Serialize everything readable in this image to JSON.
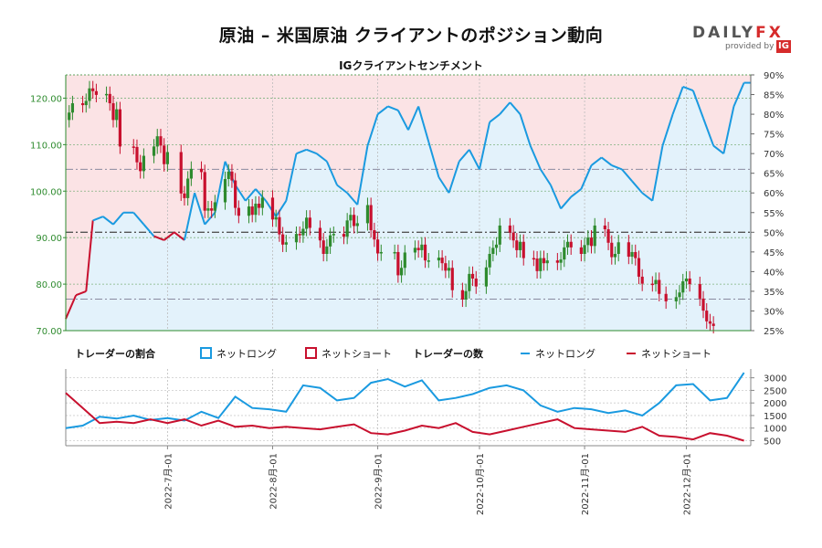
{
  "title": "原油 – 米国原油 クライアントのポジション動向",
  "brand": {
    "name_main": "DAILY",
    "name_accent": "FX",
    "tagline": "provided by",
    "sub_brand": "IG",
    "accent_color": "#d62b2b"
  },
  "chart_data": {
    "type": "line",
    "subtitle": "IGクライアントセンチメント",
    "colors": {
      "long": "#1a9ae0",
      "short": "#c8102e",
      "price_up": "#2e8b2e",
      "price_down": "#c8102e",
      "long_fill": "#e3f2fb",
      "short_fill": "#fbe3e5"
    },
    "x_axis": {
      "tick_labels": [
        "2022-7月-01",
        "2022-8月-01",
        "2022-9月-01",
        "2022-10月-01",
        "2022-11月-01",
        "2022-12月-01"
      ],
      "tick_dates": [
        "2022-07-01",
        "2022-08-01",
        "2022-09-01",
        "2022-10-01",
        "2022-11-01",
        "2022-12-01"
      ],
      "range": [
        "2022-06-01",
        "2022-12-20"
      ]
    },
    "price_axis": {
      "ylim": [
        70,
        125
      ],
      "ticks": [
        "70.00",
        "80.00",
        "90.00",
        "100.00",
        "110.00",
        "120.00"
      ]
    },
    "ratio_axis": {
      "ylim": [
        25,
        90
      ],
      "ticks": [
        "25%",
        "30%",
        "35%",
        "40%",
        "45%",
        "50%",
        "55%",
        "60%",
        "65%",
        "70%",
        "75%",
        "80%",
        "85%",
        "90%"
      ]
    },
    "count_axis": {
      "ylim": [
        300,
        3350
      ],
      "ticks": [
        "500",
        "1000",
        "1500",
        "2000",
        "2500",
        "3000"
      ]
    },
    "reference_lines_pct": [
      33,
      50,
      66
    ],
    "legend": {
      "ratio_title": "トレーダーの割合",
      "count_title": "トレーダーの数",
      "net_long": "ネットロング",
      "net_short": "ネットショート"
    },
    "price_ohlc_close": [
      [
        "2022-06-01",
        115.3
      ],
      [
        "2022-06-02",
        116.9
      ],
      [
        "2022-06-03",
        118.9
      ],
      [
        "2022-06-06",
        118.5
      ],
      [
        "2022-06-07",
        119.4
      ],
      [
        "2022-06-08",
        122.1
      ],
      [
        "2022-06-09",
        121.5
      ],
      [
        "2022-06-10",
        120.7
      ],
      [
        "2022-06-13",
        120.9
      ],
      [
        "2022-06-14",
        118.9
      ],
      [
        "2022-06-15",
        115.3
      ],
      [
        "2022-06-16",
        117.6
      ],
      [
        "2022-06-17",
        109.6
      ],
      [
        "2022-06-21",
        109.5
      ],
      [
        "2022-06-22",
        106.2
      ],
      [
        "2022-06-23",
        104.3
      ],
      [
        "2022-06-24",
        107.6
      ],
      [
        "2022-06-27",
        109.6
      ],
      [
        "2022-06-28",
        111.8
      ],
      [
        "2022-06-29",
        109.8
      ],
      [
        "2022-06-30",
        105.8
      ],
      [
        "2022-07-01",
        108.4
      ],
      [
        "2022-07-05",
        99.5
      ],
      [
        "2022-07-06",
        98.5
      ],
      [
        "2022-07-07",
        102.7
      ],
      [
        "2022-07-08",
        104.8
      ],
      [
        "2022-07-11",
        104.1
      ],
      [
        "2022-07-12",
        95.8
      ],
      [
        "2022-07-13",
        96.3
      ],
      [
        "2022-07-14",
        95.8
      ],
      [
        "2022-07-15",
        97.6
      ],
      [
        "2022-07-18",
        102.6
      ],
      [
        "2022-07-19",
        104.2
      ],
      [
        "2022-07-20",
        102.3
      ],
      [
        "2022-07-21",
        96.4
      ],
      [
        "2022-07-22",
        94.7
      ],
      [
        "2022-07-25",
        96.7
      ],
      [
        "2022-07-26",
        94.9
      ],
      [
        "2022-07-27",
        97.3
      ],
      [
        "2022-07-28",
        96.4
      ],
      [
        "2022-07-29",
        98.6
      ],
      [
        "2022-08-01",
        93.9
      ],
      [
        "2022-08-02",
        94.4
      ],
      [
        "2022-08-03",
        90.7
      ],
      [
        "2022-08-04",
        88.5
      ],
      [
        "2022-08-05",
        89.0
      ],
      [
        "2022-08-08",
        90.8
      ],
      [
        "2022-08-09",
        90.5
      ],
      [
        "2022-08-10",
        91.9
      ],
      [
        "2022-08-11",
        94.3
      ],
      [
        "2022-08-12",
        92.1
      ],
      [
        "2022-08-15",
        89.4
      ],
      [
        "2022-08-16",
        86.5
      ],
      [
        "2022-08-17",
        88.1
      ],
      [
        "2022-08-18",
        90.5
      ],
      [
        "2022-08-19",
        90.8
      ],
      [
        "2022-08-22",
        90.2
      ],
      [
        "2022-08-23",
        93.7
      ],
      [
        "2022-08-24",
        94.9
      ],
      [
        "2022-08-25",
        92.5
      ],
      [
        "2022-08-26",
        93.1
      ],
      [
        "2022-08-29",
        97.0
      ],
      [
        "2022-08-30",
        91.6
      ],
      [
        "2022-08-31",
        89.6
      ],
      [
        "2022-09-01",
        86.6
      ],
      [
        "2022-09-02",
        86.9
      ],
      [
        "2022-09-06",
        86.9
      ],
      [
        "2022-09-07",
        81.9
      ],
      [
        "2022-09-08",
        83.5
      ],
      [
        "2022-09-09",
        86.8
      ],
      [
        "2022-09-12",
        87.8
      ],
      [
        "2022-09-13",
        87.3
      ],
      [
        "2022-09-14",
        88.5
      ],
      [
        "2022-09-15",
        85.1
      ],
      [
        "2022-09-16",
        85.1
      ],
      [
        "2022-09-19",
        85.7
      ],
      [
        "2022-09-20",
        84.5
      ],
      [
        "2022-09-21",
        82.9
      ],
      [
        "2022-09-22",
        83.5
      ],
      [
        "2022-09-23",
        78.7
      ],
      [
        "2022-09-26",
        76.7
      ],
      [
        "2022-09-27",
        78.5
      ],
      [
        "2022-09-28",
        82.2
      ],
      [
        "2022-09-29",
        81.2
      ],
      [
        "2022-09-30",
        79.5
      ],
      [
        "2022-10-03",
        83.6
      ],
      [
        "2022-10-04",
        86.5
      ],
      [
        "2022-10-05",
        87.8
      ],
      [
        "2022-10-06",
        88.5
      ],
      [
        "2022-10-07",
        92.6
      ],
      [
        "2022-10-10",
        91.1
      ],
      [
        "2022-10-11",
        89.4
      ],
      [
        "2022-10-12",
        87.3
      ],
      [
        "2022-10-13",
        89.1
      ],
      [
        "2022-10-14",
        85.6
      ],
      [
        "2022-10-17",
        85.5
      ],
      [
        "2022-10-18",
        82.8
      ],
      [
        "2022-10-19",
        85.6
      ],
      [
        "2022-10-20",
        84.5
      ],
      [
        "2022-10-21",
        85.1
      ],
      [
        "2022-10-24",
        84.6
      ],
      [
        "2022-10-25",
        85.3
      ],
      [
        "2022-10-26",
        87.9
      ],
      [
        "2022-10-27",
        89.1
      ],
      [
        "2022-10-28",
        87.9
      ],
      [
        "2022-10-31",
        86.5
      ],
      [
        "2022-11-01",
        88.4
      ],
      [
        "2022-11-02",
        90.0
      ],
      [
        "2022-11-03",
        88.2
      ],
      [
        "2022-11-04",
        92.6
      ],
      [
        "2022-11-07",
        91.8
      ],
      [
        "2022-11-08",
        88.9
      ],
      [
        "2022-11-09",
        85.8
      ],
      [
        "2022-11-10",
        86.5
      ],
      [
        "2022-11-11",
        89.0
      ],
      [
        "2022-11-14",
        85.9
      ],
      [
        "2022-11-15",
        86.9
      ],
      [
        "2022-11-16",
        85.6
      ],
      [
        "2022-11-17",
        81.6
      ],
      [
        "2022-11-18",
        80.1
      ],
      [
        "2022-11-21",
        80.0
      ],
      [
        "2022-11-22",
        80.9
      ],
      [
        "2022-11-23",
        77.9
      ],
      [
        "2022-11-25",
        76.3
      ],
      [
        "2022-11-28",
        77.2
      ],
      [
        "2022-11-29",
        78.2
      ],
      [
        "2022-11-30",
        80.6
      ],
      [
        "2022-12-01",
        81.2
      ],
      [
        "2022-12-02",
        80.0
      ],
      [
        "2022-12-05",
        76.9
      ],
      [
        "2022-12-06",
        74.3
      ],
      [
        "2022-12-07",
        72.0
      ],
      [
        "2022-12-08",
        71.5
      ],
      [
        "2022-12-09",
        71.0
      ]
    ],
    "net_long_pct": [
      [
        "2022-06-01",
        28
      ],
      [
        "2022-06-04",
        34
      ],
      [
        "2022-06-07",
        35
      ],
      [
        "2022-06-09",
        53
      ],
      [
        "2022-06-12",
        54
      ],
      [
        "2022-06-15",
        52
      ],
      [
        "2022-06-18",
        55
      ],
      [
        "2022-06-21",
        55
      ],
      [
        "2022-06-24",
        52
      ],
      [
        "2022-06-27",
        49
      ],
      [
        "2022-06-30",
        48
      ],
      [
        "2022-07-03",
        50
      ],
      [
        "2022-07-06",
        48
      ],
      [
        "2022-07-09",
        60
      ],
      [
        "2022-07-12",
        52
      ],
      [
        "2022-07-15",
        55
      ],
      [
        "2022-07-18",
        68
      ],
      [
        "2022-07-21",
        62
      ],
      [
        "2022-07-24",
        58
      ],
      [
        "2022-07-27",
        61
      ],
      [
        "2022-07-30",
        58
      ],
      [
        "2022-08-02",
        54
      ],
      [
        "2022-08-05",
        58
      ],
      [
        "2022-08-08",
        70
      ],
      [
        "2022-08-11",
        71
      ],
      [
        "2022-08-14",
        70
      ],
      [
        "2022-08-17",
        68
      ],
      [
        "2022-08-20",
        62
      ],
      [
        "2022-08-23",
        60
      ],
      [
        "2022-08-26",
        57
      ],
      [
        "2022-08-29",
        72
      ],
      [
        "2022-09-01",
        80
      ],
      [
        "2022-09-04",
        82
      ],
      [
        "2022-09-07",
        81
      ],
      [
        "2022-09-10",
        76
      ],
      [
        "2022-09-13",
        82
      ],
      [
        "2022-09-16",
        73
      ],
      [
        "2022-09-19",
        64
      ],
      [
        "2022-09-22",
        60
      ],
      [
        "2022-09-25",
        68
      ],
      [
        "2022-09-28",
        71
      ],
      [
        "2022-10-01",
        66
      ],
      [
        "2022-10-04",
        78
      ],
      [
        "2022-10-07",
        80
      ],
      [
        "2022-10-10",
        83
      ],
      [
        "2022-10-13",
        80
      ],
      [
        "2022-10-16",
        72
      ],
      [
        "2022-10-19",
        66
      ],
      [
        "2022-10-22",
        62
      ],
      [
        "2022-10-25",
        56
      ],
      [
        "2022-10-28",
        59
      ],
      [
        "2022-10-31",
        61
      ],
      [
        "2022-11-03",
        67
      ],
      [
        "2022-11-06",
        69
      ],
      [
        "2022-11-09",
        67
      ],
      [
        "2022-11-12",
        66
      ],
      [
        "2022-11-15",
        63
      ],
      [
        "2022-11-18",
        60
      ],
      [
        "2022-11-21",
        58
      ],
      [
        "2022-11-24",
        72
      ],
      [
        "2022-11-27",
        80
      ],
      [
        "2022-11-30",
        87
      ],
      [
        "2022-12-03",
        86
      ],
      [
        "2022-12-06",
        79
      ],
      [
        "2022-12-09",
        72
      ],
      [
        "2022-12-12",
        70
      ],
      [
        "2022-12-15",
        82
      ],
      [
        "2022-12-18",
        88
      ]
    ],
    "net_long_count": [
      [
        "2022-06-01",
        1000
      ],
      [
        "2022-06-06",
        1100
      ],
      [
        "2022-06-11",
        1450
      ],
      [
        "2022-06-16",
        1380
      ],
      [
        "2022-06-21",
        1500
      ],
      [
        "2022-06-26",
        1320
      ],
      [
        "2022-07-01",
        1400
      ],
      [
        "2022-07-06",
        1300
      ],
      [
        "2022-07-11",
        1650
      ],
      [
        "2022-07-16",
        1400
      ],
      [
        "2022-07-21",
        2250
      ],
      [
        "2022-07-26",
        1800
      ],
      [
        "2022-07-31",
        1750
      ],
      [
        "2022-08-05",
        1650
      ],
      [
        "2022-08-10",
        2700
      ],
      [
        "2022-08-15",
        2600
      ],
      [
        "2022-08-20",
        2100
      ],
      [
        "2022-08-25",
        2200
      ],
      [
        "2022-08-30",
        2800
      ],
      [
        "2022-09-04",
        2950
      ],
      [
        "2022-09-09",
        2650
      ],
      [
        "2022-09-14",
        2900
      ],
      [
        "2022-09-19",
        2100
      ],
      [
        "2022-09-24",
        2200
      ],
      [
        "2022-09-29",
        2350
      ],
      [
        "2022-10-04",
        2600
      ],
      [
        "2022-10-09",
        2700
      ],
      [
        "2022-10-14",
        2500
      ],
      [
        "2022-10-19",
        1900
      ],
      [
        "2022-10-24",
        1650
      ],
      [
        "2022-10-29",
        1800
      ],
      [
        "2022-11-03",
        1750
      ],
      [
        "2022-11-08",
        1600
      ],
      [
        "2022-11-13",
        1700
      ],
      [
        "2022-11-18",
        1500
      ],
      [
        "2022-11-23",
        2000
      ],
      [
        "2022-11-28",
        2700
      ],
      [
        "2022-12-03",
        2750
      ],
      [
        "2022-12-08",
        2100
      ],
      [
        "2022-12-13",
        2200
      ],
      [
        "2022-12-18",
        3200
      ]
    ],
    "net_short_count": [
      [
        "2022-06-01",
        2400
      ],
      [
        "2022-06-06",
        1800
      ],
      [
        "2022-06-11",
        1200
      ],
      [
        "2022-06-16",
        1250
      ],
      [
        "2022-06-21",
        1200
      ],
      [
        "2022-06-26",
        1350
      ],
      [
        "2022-07-01",
        1200
      ],
      [
        "2022-07-06",
        1350
      ],
      [
        "2022-07-11",
        1100
      ],
      [
        "2022-07-16",
        1300
      ],
      [
        "2022-07-21",
        1050
      ],
      [
        "2022-07-26",
        1100
      ],
      [
        "2022-07-31",
        1000
      ],
      [
        "2022-08-05",
        1050
      ],
      [
        "2022-08-10",
        1000
      ],
      [
        "2022-08-15",
        950
      ],
      [
        "2022-08-20",
        1050
      ],
      [
        "2022-08-25",
        1150
      ],
      [
        "2022-08-30",
        800
      ],
      [
        "2022-09-04",
        750
      ],
      [
        "2022-09-09",
        900
      ],
      [
        "2022-09-14",
        1100
      ],
      [
        "2022-09-19",
        1000
      ],
      [
        "2022-09-24",
        1200
      ],
      [
        "2022-09-29",
        850
      ],
      [
        "2022-10-04",
        750
      ],
      [
        "2022-10-09",
        900
      ],
      [
        "2022-10-14",
        1050
      ],
      [
        "2022-10-19",
        1200
      ],
      [
        "2022-10-24",
        1350
      ],
      [
        "2022-10-29",
        1000
      ],
      [
        "2022-11-03",
        950
      ],
      [
        "2022-11-08",
        900
      ],
      [
        "2022-11-13",
        850
      ],
      [
        "2022-11-18",
        1050
      ],
      [
        "2022-11-23",
        700
      ],
      [
        "2022-11-28",
        650
      ],
      [
        "2022-12-03",
        550
      ],
      [
        "2022-12-08",
        800
      ],
      [
        "2022-12-13",
        700
      ],
      [
        "2022-12-18",
        500
      ]
    ]
  }
}
